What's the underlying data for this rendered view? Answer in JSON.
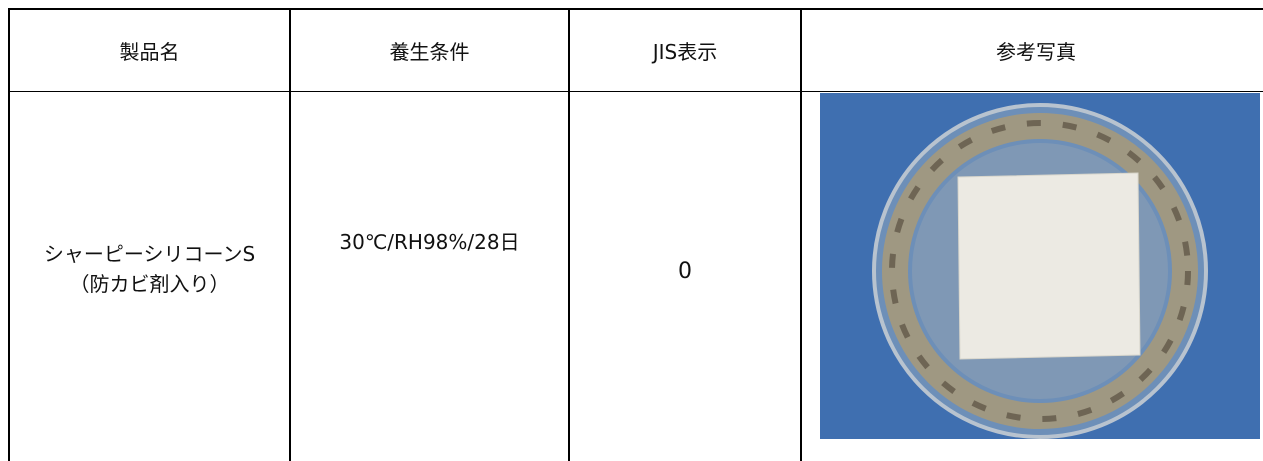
{
  "table": {
    "header": [
      "製品名",
      "養生条件",
      "JIS表示",
      "参考写真"
    ],
    "rows": [
      [
        [
          "シャーピーシリコーンS",
          "（防カビ剤入り）"
        ],
        "30℃/RH98%/28日",
        "0"
      ]
    ]
  }
}
